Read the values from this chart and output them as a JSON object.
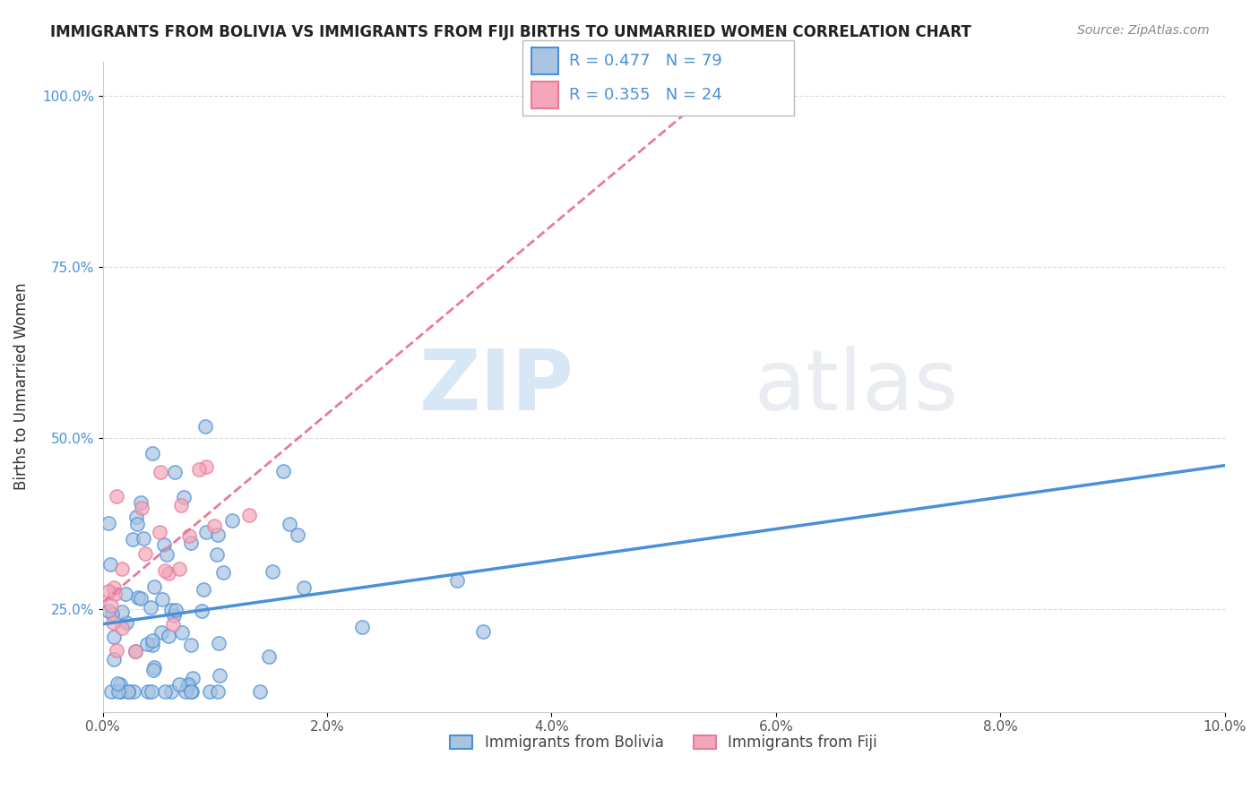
{
  "title": "IMMIGRANTS FROM BOLIVIA VS IMMIGRANTS FROM FIJI BIRTHS TO UNMARRIED WOMEN CORRELATION CHART",
  "source": "Source: ZipAtlas.com",
  "ylabel": "Births to Unmarried Women",
  "legend_label1": "Immigrants from Bolivia",
  "legend_label2": "Immigrants from Fiji",
  "R1": 0.477,
  "N1": 79,
  "R2": 0.355,
  "N2": 24,
  "color_bolivia": "#a8c4e0",
  "color_fiji": "#f4a7b9",
  "color_line_bolivia": "#4a90d9",
  "color_line_fiji": "#e87a9a",
  "xmin": 0.0,
  "xmax": 0.1,
  "ymin": 0.1,
  "ymax": 1.05,
  "yticks": [
    0.25,
    0.5,
    0.75,
    1.0
  ],
  "ytick_labels": [
    "25.0%",
    "50.0%",
    "75.0%",
    "100.0%"
  ],
  "xticks": [
    0.0,
    0.02,
    0.04,
    0.06,
    0.08,
    0.1
  ],
  "xtick_labels": [
    "0.0%",
    "2.0%",
    "4.0%",
    "6.0%",
    "8.0%",
    "10.0%"
  ],
  "watermark_zip": "ZIP",
  "watermark_atlas": "atlas"
}
